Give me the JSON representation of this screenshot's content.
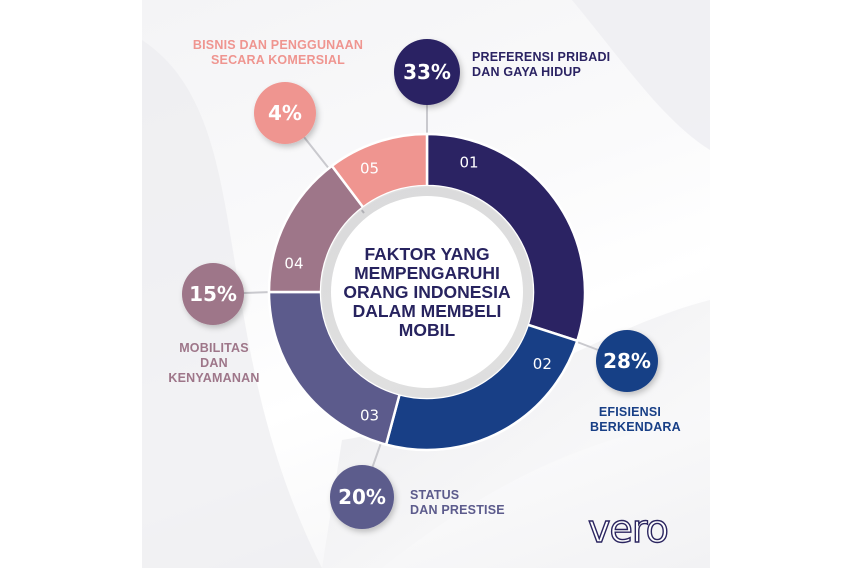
{
  "infographic": {
    "title": "FAKTOR YANG MEMPENGARUHI ORANG INDONESIA DALAM MEMBELI MOBIL",
    "title_lines": [
      "FAKTOR YANG",
      "MEMPENGARUHI",
      "ORANG INDONESIA",
      "DALAM MEMBELI",
      "MOBIL"
    ],
    "logo": "vero",
    "segments": [
      {
        "num": "01",
        "pct": "33%",
        "label_lines": [
          "PREFERENSI PRIBADI",
          "DAN GAYA HIDUP"
        ],
        "color": "#2b2363"
      },
      {
        "num": "02",
        "pct": "28%",
        "label_lines": [
          "EFISIENSI",
          "BERKENDARA"
        ],
        "color": "#183f86"
      },
      {
        "num": "03",
        "pct": "20%",
        "label_lines": [
          "STATUS",
          "DAN PRESTISE"
        ],
        "color": "#5c5b8c"
      },
      {
        "num": "04",
        "pct": "15%",
        "label_lines": [
          "MOBILITAS",
          "DAN",
          "KENYAMANAN"
        ],
        "color": "#9e7689"
      },
      {
        "num": "05",
        "pct": "4%",
        "label_lines": [
          "BISNIS DAN PENGGUNAAN",
          "SECARA KOMERSIAL"
        ],
        "color": "#ef9590"
      }
    ]
  },
  "chart_data": {
    "type": "pie",
    "subtype": "donut",
    "title": "FAKTOR YANG MEMPENGARUHI ORANG INDONESIA DALAM MEMBELI MOBIL",
    "categories": [
      "PREFERENSI PRIBADI DAN GAYA HIDUP",
      "EFISIENSI BERKENDARA",
      "STATUS DAN PRESTISE",
      "MOBILITAS DAN KENYAMANAN",
      "BISNIS DAN PENGGUNAAN SECARA KOMERSIAL"
    ],
    "segment_numbers": [
      "01",
      "02",
      "03",
      "04",
      "05"
    ],
    "values": [
      33,
      28,
      20,
      15,
      4
    ],
    "unit": "%",
    "colors": [
      "#2b2363",
      "#183f86",
      "#5c5b8c",
      "#9e7689",
      "#ef9590"
    ],
    "legend_position": "labels around donut"
  }
}
